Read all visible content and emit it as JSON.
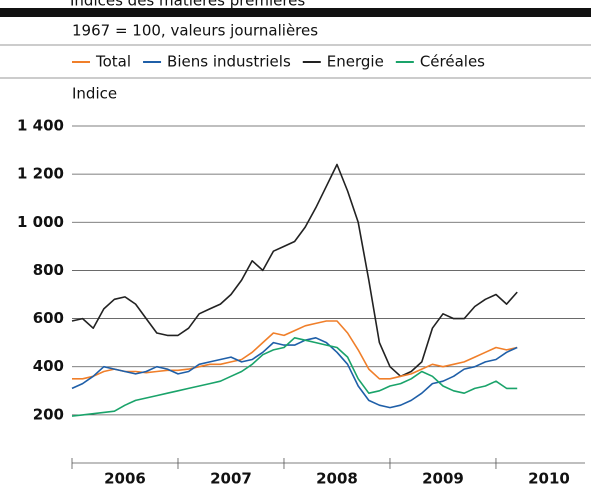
{
  "chart_data": {
    "type": "line",
    "title": "Indices des matières premières",
    "subtitle": "1967 = 100, valeurs journalières",
    "y_label": "Indice",
    "x": [
      2006.0,
      2006.1,
      2006.2,
      2006.3,
      2006.4,
      2006.5,
      2006.6,
      2006.7,
      2006.8,
      2006.9,
      2007.0,
      2007.1,
      2007.2,
      2007.3,
      2007.4,
      2007.5,
      2007.6,
      2007.7,
      2007.8,
      2007.9,
      2008.0,
      2008.1,
      2008.2,
      2008.3,
      2008.4,
      2008.5,
      2008.6,
      2008.7,
      2008.8,
      2008.9,
      2009.0,
      2009.1,
      2009.2,
      2009.3,
      2009.4,
      2009.5,
      2009.6,
      2009.7,
      2009.8,
      2009.9,
      2010.0,
      2010.1,
      2010.2
    ],
    "series": [
      {
        "name": "Total",
        "color": "#f07f2a",
        "values": [
          350,
          350,
          360,
          380,
          390,
          380,
          380,
          375,
          380,
          385,
          385,
          390,
          400,
          410,
          410,
          420,
          430,
          460,
          500,
          540,
          530,
          550,
          570,
          580,
          590,
          590,
          540,
          470,
          390,
          350,
          350,
          360,
          370,
          390,
          410,
          400,
          410,
          420,
          440,
          460,
          480,
          470,
          480
        ]
      },
      {
        "name": "Biens industriels",
        "color": "#1f5fa8",
        "values": [
          310,
          330,
          360,
          400,
          390,
          380,
          370,
          380,
          400,
          390,
          370,
          380,
          410,
          420,
          430,
          440,
          420,
          430,
          460,
          500,
          490,
          490,
          510,
          520,
          500,
          460,
          410,
          320,
          260,
          240,
          230,
          240,
          260,
          290,
          330,
          340,
          360,
          390,
          400,
          420,
          430,
          460,
          480
        ]
      },
      {
        "name": "Energie",
        "color": "#222222",
        "values": [
          590,
          600,
          560,
          640,
          680,
          690,
          660,
          600,
          540,
          530,
          530,
          560,
          620,
          640,
          660,
          700,
          760,
          840,
          800,
          880,
          900,
          920,
          980,
          1060,
          1150,
          1240,
          1130,
          1000,
          760,
          500,
          400,
          360,
          380,
          420,
          560,
          620,
          600,
          600,
          650,
          680,
          700,
          660,
          710
        ]
      },
      {
        "name": "Céréales",
        "color": "#1aa36a",
        "values": [
          195,
          200,
          205,
          210,
          215,
          240,
          260,
          270,
          280,
          290,
          300,
          310,
          320,
          330,
          340,
          360,
          380,
          410,
          450,
          470,
          480,
          520,
          510,
          500,
          490,
          480,
          440,
          350,
          290,
          300,
          320,
          330,
          350,
          380,
          360,
          320,
          300,
          290,
          310,
          320,
          340,
          310,
          310
        ]
      }
    ],
    "xlim": [
      2006,
      2010.84
    ],
    "xticks": [
      {
        "value": 2006.5,
        "label": "2006"
      },
      {
        "value": 2007.5,
        "label": "2007"
      },
      {
        "value": 2008.5,
        "label": "2008"
      },
      {
        "value": 2009.5,
        "label": "2009"
      },
      {
        "value": 2010.5,
        "label": "2010"
      }
    ],
    "ylim": [
      0,
      1400
    ],
    "yticks": [
      200,
      400,
      600,
      800,
      {
        "value": 1000,
        "label": "1 000"
      },
      {
        "value": 1200,
        "label": "1 200"
      },
      {
        "value": 1400,
        "label": "1 400"
      }
    ],
    "grid": true
  }
}
